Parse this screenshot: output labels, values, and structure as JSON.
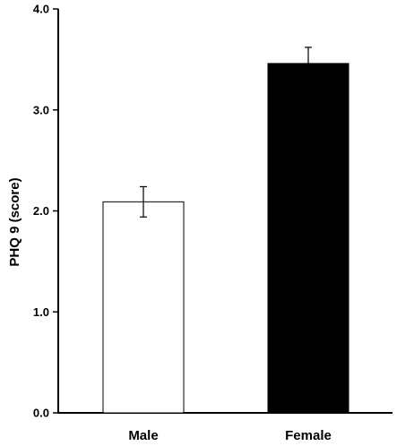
{
  "chart_data": {
    "type": "bar",
    "title": "",
    "xlabel": "",
    "ylabel": "PHQ 9 (score)",
    "ylim": [
      0,
      4
    ],
    "yticks": [
      "0.0",
      "1.0",
      "2.0",
      "3.0",
      "4.0"
    ],
    "ytick_values": [
      0,
      1,
      2,
      3,
      4
    ],
    "grid": false,
    "categories": [
      "Male",
      "Female"
    ],
    "values": [
      2.09,
      3.46
    ],
    "error_bars": [
      0.15,
      0.16
    ],
    "colors": {
      "bar_fills": [
        "#ffffff",
        "#000000"
      ],
      "bar_stroke": "#000000",
      "axis": "#000000"
    }
  }
}
